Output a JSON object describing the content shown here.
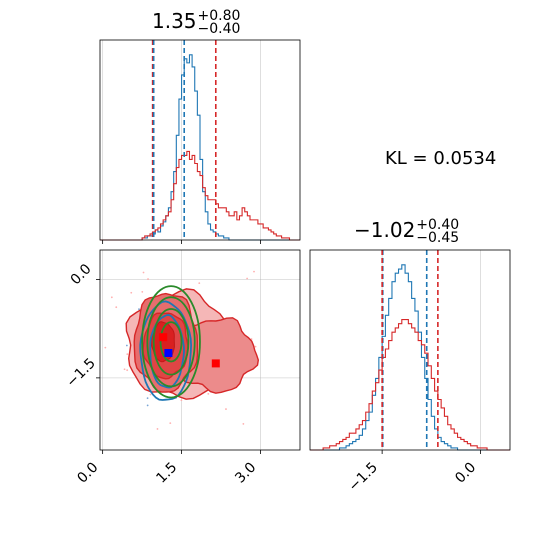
{
  "chart_data": [
    {
      "type": "histogram",
      "panel": "top-left",
      "title": {
        "value": "1.35",
        "upper": "+0.80",
        "lower": "−0.40"
      },
      "x_range": [
        -0.05,
        3.75
      ],
      "x_ticks": [
        0.0,
        1.5,
        3.0
      ],
      "x_tick_labels_shown": false,
      "grid": true,
      "series": [
        {
          "color": "#1f77b4",
          "bin_edges_start": -0.05,
          "bin_width": 0.05,
          "counts": [
            0,
            0,
            0,
            0,
            0,
            0,
            0,
            0,
            0,
            0,
            0,
            0,
            0,
            0,
            0,
            0,
            1,
            1,
            2,
            2,
            3,
            5,
            4,
            7,
            9,
            12,
            16,
            24,
            34,
            52,
            70,
            82,
            90,
            88,
            92,
            86,
            74,
            62,
            40,
            24,
            14,
            8,
            5,
            4,
            3,
            2,
            2,
            1,
            1,
            0,
            0,
            0,
            0,
            0,
            0,
            0,
            0,
            0,
            0,
            0,
            0,
            0,
            0,
            0,
            0,
            0,
            0,
            0,
            0,
            0,
            0,
            0,
            0,
            0,
            0,
            0
          ]
        },
        {
          "color": "#d62728",
          "bin_edges_start": -0.05,
          "bin_width": 0.05,
          "counts": [
            0,
            0,
            0,
            0,
            0,
            0,
            0,
            0,
            0,
            0,
            0,
            0,
            0,
            0,
            0,
            0,
            1,
            2,
            2,
            3,
            4,
            5,
            6,
            8,
            10,
            12,
            14,
            20,
            28,
            36,
            40,
            42,
            42,
            44,
            40,
            42,
            38,
            34,
            32,
            26,
            22,
            20,
            20,
            20,
            18,
            16,
            16,
            16,
            14,
            12,
            12,
            14,
            10,
            12,
            16,
            14,
            12,
            10,
            10,
            10,
            8,
            8,
            6,
            6,
            5,
            4,
            3,
            2,
            2,
            1,
            1,
            1,
            0,
            0,
            0,
            0
          ]
        }
      ],
      "vlines": [
        {
          "x": 0.95,
          "color": "#d62728"
        },
        {
          "x": 0.97,
          "color": "#1f77b4"
        },
        {
          "x": 1.55,
          "color": "#1f77b4"
        },
        {
          "x": 2.15,
          "color": "#d62728"
        }
      ]
    },
    {
      "type": "contour",
      "panel": "bottom-left",
      "x_range": [
        -0.05,
        3.75
      ],
      "y_range": [
        -2.6,
        0.45
      ],
      "x_ticks": [
        0.0,
        1.5,
        3.0
      ],
      "x_tick_labels": [
        "0.0",
        "1.5",
        "3.0"
      ],
      "y_ticks": [
        0.0,
        -1.5
      ],
      "y_tick_labels": [
        "0.0",
        "−1.5"
      ],
      "grid": true,
      "points": [
        {
          "x": 1.15,
          "y": -0.88,
          "color": "#ff0000",
          "shape": "square"
        },
        {
          "x": 1.25,
          "y": -1.12,
          "color": "#0000ff",
          "shape": "square"
        },
        {
          "x": 2.15,
          "y": -1.28,
          "color": "#ff0000",
          "shape": "square"
        }
      ]
    },
    {
      "type": "histogram",
      "panel": "bottom-right",
      "title": {
        "value": "−1.02",
        "upper": "+0.40",
        "lower": "−0.45"
      },
      "x_range": [
        -2.6,
        0.45
      ],
      "x_ticks": [
        -1.5,
        0.0
      ],
      "x_tick_labels": [
        "−1.5",
        "0.0"
      ],
      "grid": true,
      "series": [
        {
          "color": "#1f77b4",
          "bin_edges_start": -2.6,
          "bin_width": 0.05,
          "counts": [
            0,
            0,
            0,
            0,
            0,
            0,
            0,
            0,
            0,
            1,
            1,
            2,
            3,
            4,
            5,
            7,
            10,
            14,
            18,
            26,
            34,
            44,
            54,
            64,
            72,
            80,
            84,
            86,
            88,
            84,
            80,
            72,
            66,
            56,
            44,
            34,
            24,
            16,
            10,
            6,
            4,
            3,
            2,
            1,
            1,
            0,
            0,
            0,
            0,
            0,
            0,
            0,
            0,
            0,
            0,
            0,
            0,
            0,
            0,
            0,
            0
          ]
        },
        {
          "color": "#d62728",
          "bin_edges_start": -2.6,
          "bin_width": 0.05,
          "counts": [
            0,
            0,
            0,
            0,
            1,
            1,
            2,
            2,
            3,
            4,
            5,
            6,
            8,
            8,
            10,
            12,
            14,
            18,
            22,
            28,
            32,
            38,
            44,
            48,
            52,
            56,
            58,
            60,
            62,
            62,
            60,
            58,
            56,
            52,
            50,
            46,
            40,
            34,
            28,
            24,
            20,
            16,
            12,
            10,
            8,
            6,
            5,
            4,
            3,
            2,
            2,
            1,
            1,
            1,
            0,
            0,
            0,
            0,
            0,
            0,
            0
          ]
        }
      ],
      "vlines": [
        {
          "x": -1.49,
          "color": "#1f77b4"
        },
        {
          "x": -1.5,
          "color": "#d62728"
        },
        {
          "x": -0.82,
          "color": "#1f77b4"
        },
        {
          "x": -0.65,
          "color": "#d62728"
        }
      ]
    }
  ],
  "annotation": {
    "kl_label": "KL = 0.0534"
  }
}
